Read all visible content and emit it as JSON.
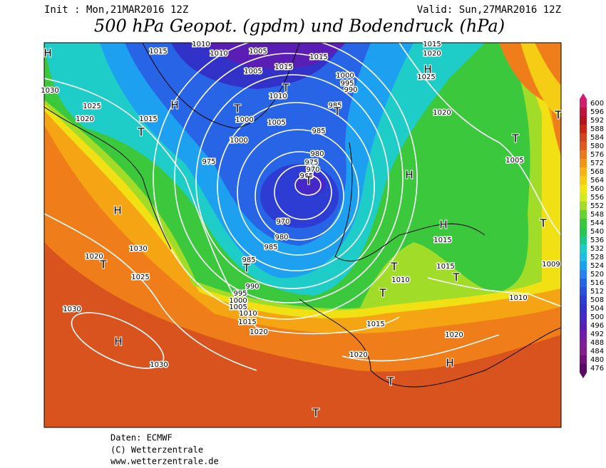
{
  "header": {
    "init": "Init : Mon,21MAR2016 12Z",
    "valid": "Valid: Sun,27MAR2016 12Z",
    "title": "500 hPa Geopot. (gpdm) und Bodendruck (hPa)"
  },
  "colorbar": {
    "labels": [
      600,
      596,
      592,
      588,
      584,
      580,
      576,
      572,
      568,
      564,
      560,
      556,
      552,
      548,
      544,
      540,
      536,
      532,
      528,
      524,
      520,
      516,
      512,
      508,
      504,
      500,
      496,
      492,
      488,
      484,
      480,
      476
    ],
    "colors": [
      "#d21e6e",
      "#c0143c",
      "#b4141e",
      "#c82814",
      "#d2461e",
      "#e05a1e",
      "#ec781e",
      "#f09614",
      "#f5b414",
      "#f5cd14",
      "#f0e614",
      "#d2eb1e",
      "#a0dc28",
      "#64d232",
      "#3cc83c",
      "#28c850",
      "#1ec88c",
      "#1ecdc8",
      "#1ebee6",
      "#1ea0f0",
      "#2882f0",
      "#2864e6",
      "#2850dc",
      "#2d3cd2",
      "#3232c8",
      "#4628c8",
      "#5a1eb4",
      "#6e1eaa",
      "#7d1e9b",
      "#821e8c",
      "#6e1478",
      "#5a0a64"
    ]
  },
  "map": {
    "isobar_labels": [
      1015,
      1010,
      1010,
      1005,
      1015,
      1015,
      1005,
      1010,
      1000,
      995,
      990,
      985,
      1000,
      1005,
      1000,
      985,
      980,
      975,
      970,
      965,
      975,
      970,
      980,
      985,
      985,
      990,
      995,
      1000,
      1005,
      1010,
      1015,
      1020,
      1030,
      1025,
      1020,
      1015,
      1030,
      1020,
      1025,
      1030,
      1030,
      1020,
      1015,
      1020,
      1010,
      1015,
      1015,
      1010,
      1005,
      1020,
      1025,
      1020,
      1015,
      1009
    ],
    "pressure_centers": [
      "H",
      "H",
      "T",
      "T",
      "T",
      "T",
      "H",
      "T",
      "T",
      "H",
      "H",
      "H",
      "T",
      "T",
      "H",
      "T",
      "T",
      "T",
      "T",
      "T",
      "H",
      "T",
      "T"
    ]
  },
  "footer": {
    "source": "Daten: ECMWF",
    "copyright": "(C) Wetterzentrale",
    "url": "www.wetterzentrale.de"
  }
}
